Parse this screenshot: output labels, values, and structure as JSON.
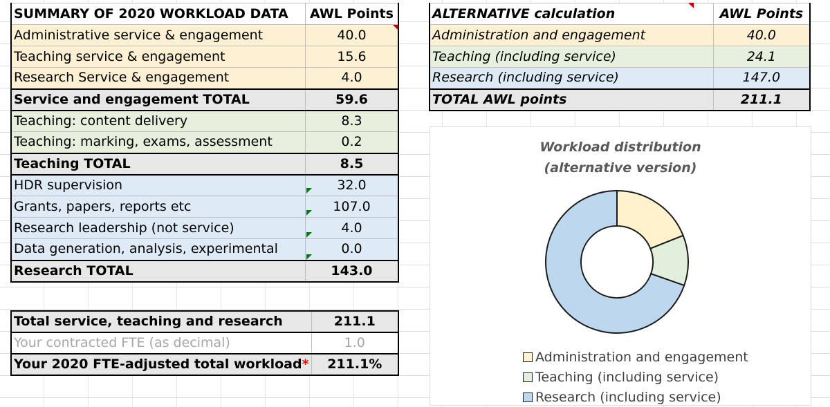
{
  "summary": {
    "header": {
      "label": "SUMMARY OF 2020 WORKLOAD DATA",
      "points": "AWL Points"
    },
    "rows": [
      {
        "label": "Administrative service & engagement",
        "value": "40.0"
      },
      {
        "label": "Teaching service & engagement",
        "value": "15.6"
      },
      {
        "label": "Research Service & engagement",
        "value": "4.0"
      },
      {
        "label": "Service and engagement TOTAL",
        "value": "59.6"
      },
      {
        "label": "Teaching: content delivery",
        "value": "8.3"
      },
      {
        "label": "Teaching: marking, exams, assessment",
        "value": "0.2"
      },
      {
        "label": "Teaching TOTAL",
        "value": "8.5"
      },
      {
        "label": "HDR supervision",
        "value": "32.0"
      },
      {
        "label": "Grants, papers, reports etc",
        "value": "107.0"
      },
      {
        "label": "Research leadership (not service)",
        "value": "4.0"
      },
      {
        "label": "Data generation, analysis, experimental",
        "value": "0.0"
      },
      {
        "label": "Research TOTAL",
        "value": "143.0"
      }
    ],
    "bottom": [
      {
        "label": "Total service, teaching and research",
        "value": "211.1"
      },
      {
        "label": "Your contracted FTE (as decimal)",
        "value": "1.0"
      },
      {
        "label": "Your 2020 FTE-adjusted total workload",
        "star": "*",
        "value": "211.1%"
      }
    ]
  },
  "alternative": {
    "header": {
      "label": "ALTERNATIVE calculation",
      "points": "AWL Points"
    },
    "rows": [
      {
        "label": "Administration and engagement",
        "value": "40.0"
      },
      {
        "label": "Teaching (including service)",
        "value": "24.1"
      },
      {
        "label": "Research (including service)",
        "value": "147.0"
      },
      {
        "label": "TOTAL AWL points",
        "value": "211.1"
      }
    ]
  },
  "colors": {
    "admin": "#fff2cc",
    "teaching": "#e2efda",
    "research": "#bdd7ee",
    "flag_red": "#c00000",
    "flag_green": "#007a00"
  },
  "chart_data": {
    "type": "pie",
    "title_line1": "Workload distribution",
    "title_line2": "(alternative version)",
    "categories": [
      "Administration and engagement",
      "Teaching (including service)",
      "Research (including service)"
    ],
    "values": [
      40.0,
      24.1,
      147.0
    ],
    "legend_position": "bottom"
  }
}
